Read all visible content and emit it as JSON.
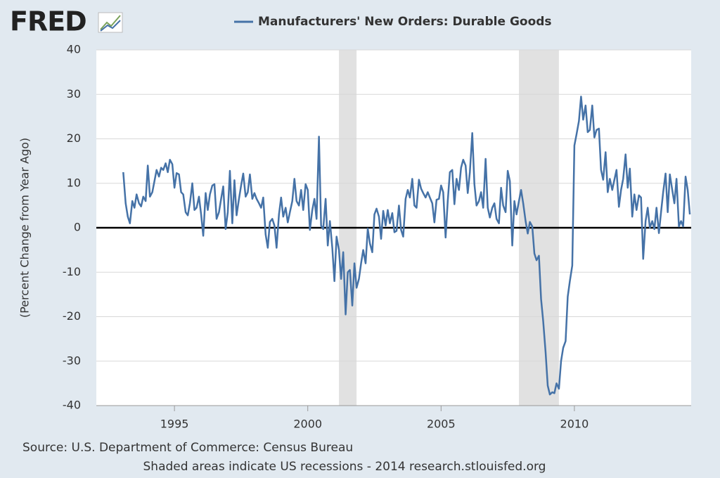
{
  "logo": "FRED",
  "chart_data": {
    "type": "line",
    "y_label": "(Percent Change from Year Ago)",
    "source": "Source: U.S. Department of Commerce: Census Bureau",
    "note": "Shaded areas indicate US recessions - 2014 research.stlouisfed.org",
    "x": [
      1993.08,
      1993.17,
      1993.25,
      1993.33,
      1993.42,
      1993.5,
      1993.58,
      1993.67,
      1993.75,
      1993.83,
      1993.92,
      1994.0,
      1994.08,
      1994.17,
      1994.25,
      1994.33,
      1994.42,
      1994.5,
      1994.58,
      1994.67,
      1994.75,
      1994.83,
      1994.92,
      1995.0,
      1995.08,
      1995.17,
      1995.25,
      1995.33,
      1995.42,
      1995.5,
      1995.58,
      1995.67,
      1995.75,
      1995.83,
      1995.92,
      1996.0,
      1996.08,
      1996.17,
      1996.25,
      1996.33,
      1996.42,
      1996.5,
      1996.58,
      1996.67,
      1996.75,
      1996.83,
      1996.92,
      1997.0,
      1997.08,
      1997.17,
      1997.25,
      1997.33,
      1997.42,
      1997.5,
      1997.58,
      1997.67,
      1997.75,
      1997.83,
      1997.92,
      1998.0,
      1998.08,
      1998.17,
      1998.25,
      1998.33,
      1998.42,
      1998.5,
      1998.58,
      1998.67,
      1998.75,
      1998.83,
      1998.92,
      1999.0,
      1999.08,
      1999.17,
      1999.25,
      1999.33,
      1999.42,
      1999.5,
      1999.58,
      1999.67,
      1999.75,
      1999.83,
      1999.92,
      2000.0,
      2000.08,
      2000.17,
      2000.25,
      2000.33,
      2000.42,
      2000.5,
      2000.58,
      2000.67,
      2000.75,
      2000.83,
      2000.92,
      2001.0,
      2001.08,
      2001.17,
      2001.25,
      2001.33,
      2001.42,
      2001.5,
      2001.58,
      2001.67,
      2001.75,
      2001.83,
      2001.92,
      2002.0,
      2002.08,
      2002.17,
      2002.25,
      2002.33,
      2002.42,
      2002.5,
      2002.58,
      2002.67,
      2002.75,
      2002.83,
      2002.92,
      2003.0,
      2003.08,
      2003.17,
      2003.25,
      2003.33,
      2003.42,
      2003.5,
      2003.58,
      2003.67,
      2003.75,
      2003.83,
      2003.92,
      2004.0,
      2004.08,
      2004.17,
      2004.25,
      2004.33,
      2004.42,
      2004.5,
      2004.58,
      2004.67,
      2004.75,
      2004.83,
      2004.92,
      2005.0,
      2005.08,
      2005.17,
      2005.25,
      2005.33,
      2005.42,
      2005.5,
      2005.58,
      2005.67,
      2005.75,
      2005.83,
      2005.92,
      2006.0,
      2006.08,
      2006.17,
      2006.25,
      2006.33,
      2006.42,
      2006.5,
      2006.58,
      2006.67,
      2006.75,
      2006.83,
      2006.92,
      2007.0,
      2007.08,
      2007.17,
      2007.25,
      2007.33,
      2007.42,
      2007.5,
      2007.58,
      2007.67,
      2007.75,
      2007.83,
      2007.92,
      2008.0,
      2008.08,
      2008.17,
      2008.25,
      2008.33,
      2008.42,
      2008.5,
      2008.58,
      2008.67,
      2008.75,
      2008.83,
      2008.92,
      2009.0,
      2009.08,
      2009.17,
      2009.25,
      2009.33,
      2009.42,
      2009.5,
      2009.58,
      2009.67,
      2009.75,
      2009.83,
      2009.92,
      2010.0,
      2010.08,
      2010.17,
      2010.25,
      2010.33,
      2010.42,
      2010.5,
      2010.58,
      2010.67,
      2010.75,
      2010.83,
      2010.92,
      2011.0,
      2011.08,
      2011.17,
      2011.25,
      2011.33,
      2011.42,
      2011.5,
      2011.58,
      2011.67,
      2011.75,
      2011.83,
      2011.92,
      2012.0,
      2012.08,
      2012.17,
      2012.25,
      2012.33,
      2012.42,
      2012.5,
      2012.58,
      2012.67,
      2012.75,
      2012.83,
      2012.92,
      2013.0,
      2013.08,
      2013.17,
      2013.25,
      2013.33,
      2013.42,
      2013.5,
      2013.58,
      2013.67,
      2013.75,
      2013.83,
      2013.92,
      2014.0,
      2014.08,
      2014.17,
      2014.25,
      2014.33
    ],
    "series": [
      {
        "name": "Manufacturers' New Orders: Durable Goods",
        "color": "#4572a7",
        "values": [
          12.5,
          5.5,
          2.5,
          1,
          6,
          4.5,
          7.5,
          5.5,
          4.8,
          7,
          6,
          14,
          7,
          8,
          10.5,
          13,
          11.5,
          13.5,
          13,
          14.5,
          12.5,
          15.3,
          14.3,
          9,
          12.3,
          12,
          8,
          7.5,
          3.5,
          2.8,
          5.5,
          10,
          4,
          4.5,
          7,
          3,
          -1.8,
          7.8,
          4,
          7.5,
          9.5,
          9.8,
          2,
          3.5,
          6.5,
          9.3,
          -0.3,
          3.5,
          12.8,
          1,
          10.7,
          2.8,
          6.5,
          9.5,
          12.2,
          7,
          8,
          12,
          6.5,
          7.8,
          6.5,
          5.5,
          4.5,
          6.8,
          -1.5,
          -4.5,
          1.3,
          2,
          0.5,
          -4.5,
          3,
          6.8,
          2.5,
          4.5,
          1.2,
          3.5,
          6,
          11,
          6,
          5,
          8.5,
          4,
          9.8,
          8.5,
          -0.5,
          4,
          6.5,
          2,
          20.5,
          0.5,
          -0.3,
          6.5,
          -4,
          1.5,
          -4.5,
          -12,
          -2,
          -5,
          -11.5,
          -5.5,
          -19.5,
          -10,
          -9.5,
          -17.5,
          -8,
          -13.5,
          -11.5,
          -8,
          -5,
          -8,
          -0.2,
          -3.5,
          -5.5,
          3,
          4.3,
          2.5,
          -2.5,
          3.8,
          0.5,
          4,
          1,
          3.3,
          -1,
          -0.7,
          5,
          -0.5,
          -2,
          6.5,
          8.5,
          6.8,
          11,
          5,
          4.5,
          10.8,
          8.8,
          7.8,
          6.8,
          8,
          6.8,
          5.5,
          1.2,
          6.3,
          6.5,
          9.5,
          8,
          -2.2,
          6,
          12.5,
          13,
          5.3,
          11,
          8.5,
          13.5,
          15.3,
          14,
          7.8,
          12.5,
          21.3,
          9.8,
          5,
          6,
          8,
          4.5,
          15.5,
          4.5,
          2.3,
          4.5,
          5.5,
          2,
          1,
          9,
          5,
          3.5,
          12.8,
          10.5,
          -4,
          6,
          3,
          6,
          8.5,
          5.5,
          1.5,
          -1.3,
          1.3,
          0.3,
          -5.8,
          -7.3,
          -6.3,
          -16,
          -21,
          -28,
          -35.5,
          -37.5,
          -37,
          -37.2,
          -35,
          -36.2,
          -30,
          -27,
          -25.5,
          -15.5,
          -12,
          -8.5,
          18.5,
          21,
          24,
          29.5,
          24.3,
          27.5,
          21.5,
          22,
          27.5,
          20.3,
          22,
          22.3,
          13,
          10.8,
          17,
          8,
          11,
          8.5,
          10.8,
          13,
          4.7,
          8.5,
          11,
          16.5,
          9,
          13.3,
          2.5,
          7.5,
          4,
          7.3,
          6.8,
          -7,
          1.5,
          4.5,
          0,
          1.5,
          -0.3,
          4.5,
          -1.2,
          3.5,
          8,
          12.2,
          3.5,
          12,
          8.5,
          5.5,
          11,
          0.3,
          1.5,
          0.3,
          11.5,
          8.5,
          3
        ]
      }
    ],
    "recessions": [
      [
        2001.17,
        2001.83
      ],
      [
        2007.92,
        2009.42
      ]
    ],
    "recession_color": "#e1e1e1",
    "xlim": [
      1992.07,
      2014.38
    ],
    "xticks": [
      1995,
      2000,
      2005,
      2010
    ],
    "ylim": [
      -40,
      40
    ],
    "yticks": [
      -40,
      -30,
      -20,
      -10,
      0,
      10,
      20,
      30,
      40
    ],
    "grid": true,
    "zero_line": true
  }
}
